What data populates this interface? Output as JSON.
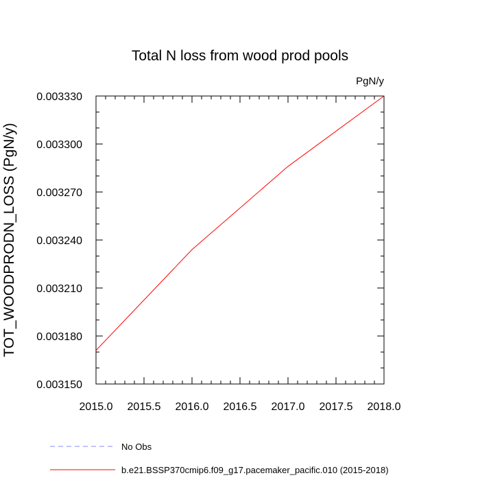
{
  "chart_data": {
    "type": "line",
    "title": "Total N loss from wood prod pools",
    "units_label": "PgN/y",
    "xlabel": "",
    "ylabel": "TOT_WOODPRODN_LOSS  (PgN/y)",
    "xlim": [
      2015.0,
      2018.0
    ],
    "ylim": [
      0.00315,
      0.00333
    ],
    "x_ticks": [
      "2015.0",
      "2015.5",
      "2016.0",
      "2016.5",
      "2017.0",
      "2017.5",
      "2018.0"
    ],
    "y_ticks": [
      "0.003150",
      "0.003180",
      "0.003210",
      "0.003240",
      "0.003270",
      "0.003300",
      "0.003330"
    ],
    "grid": false,
    "legend_position": "bottom",
    "series": [
      {
        "name": "No Obs",
        "color": "#8888ff",
        "dash": "dashed",
        "x": [],
        "values": []
      },
      {
        "name": "b.e21.BSSP370cmip6.f09_g17.pacemaker_pacific.010 (2015-2018)",
        "color": "#ff0000",
        "dash": "solid",
        "x": [
          2015,
          2016,
          2017,
          2018
        ],
        "values": [
          0.003171,
          0.003234,
          0.003286,
          0.00333
        ]
      }
    ]
  }
}
